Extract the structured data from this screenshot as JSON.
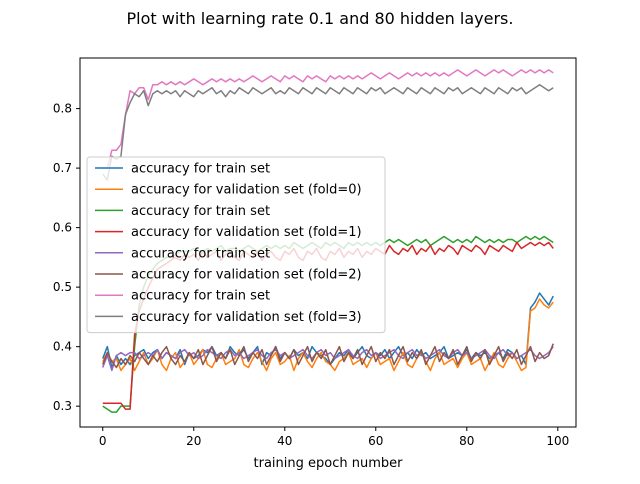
{
  "chart_data": {
    "type": "line",
    "title": "Plot with learning rate 0.1 and 80 hidden layers.",
    "xlabel": "training epoch number",
    "ylabel": "",
    "xlim": [
      -5,
      104
    ],
    "ylim": [
      0.265,
      0.885
    ],
    "xticks": [
      0,
      20,
      40,
      60,
      80,
      100
    ],
    "yticks": [
      0.3,
      0.4,
      0.5,
      0.6,
      0.7,
      0.8
    ],
    "xtick_labels": [
      "0",
      "20",
      "40",
      "60",
      "80",
      "100"
    ],
    "ytick_labels": [
      "0.3",
      "0.4",
      "0.5",
      "0.6",
      "0.7",
      "0.8"
    ],
    "grid": false,
    "legend_position": "center-left",
    "series": [
      {
        "name": "accuracy for train set",
        "color": "#1f77b4",
        "values": [
          0.38,
          0.4,
          0.365,
          0.385,
          0.37,
          0.38,
          0.37,
          0.385,
          0.39,
          0.395,
          0.38,
          0.39,
          0.395,
          0.38,
          0.39,
          0.385,
          0.38,
          0.395,
          0.37,
          0.39,
          0.38,
          0.385,
          0.395,
          0.39,
          0.4,
          0.385,
          0.39,
          0.38,
          0.4,
          0.39,
          0.385,
          0.395,
          0.38,
          0.39,
          0.4,
          0.37,
          0.39,
          0.385,
          0.4,
          0.38,
          0.39,
          0.38,
          0.395,
          0.385,
          0.39,
          0.38,
          0.4,
          0.39,
          0.385,
          0.38,
          0.37,
          0.38,
          0.39,
          0.385,
          0.395,
          0.38,
          0.39,
          0.4,
          0.385,
          0.38,
          0.39,
          0.385,
          0.395,
          0.38,
          0.39,
          0.4,
          0.385,
          0.39,
          0.38,
          0.395,
          0.385,
          0.39,
          0.38,
          0.385,
          0.39,
          0.4,
          0.38,
          0.385,
          0.39,
          0.385,
          0.395,
          0.38,
          0.39,
          0.385,
          0.39,
          0.38,
          0.385,
          0.39,
          0.38,
          0.395,
          0.39,
          0.38,
          0.385,
          0.37,
          0.465,
          0.475,
          0.49,
          0.48,
          0.47,
          0.485
        ]
      },
      {
        "name": "accuracy for validation set (fold=0)",
        "color": "#ff7f0e",
        "values": [
          0.375,
          0.39,
          0.375,
          0.38,
          0.36,
          0.37,
          0.38,
          0.36,
          0.375,
          0.39,
          0.37,
          0.38,
          0.395,
          0.37,
          0.36,
          0.38,
          0.39,
          0.365,
          0.375,
          0.39,
          0.37,
          0.38,
          0.395,
          0.37,
          0.365,
          0.38,
          0.39,
          0.37,
          0.375,
          0.38,
          0.395,
          0.37,
          0.365,
          0.38,
          0.39,
          0.375,
          0.36,
          0.38,
          0.39,
          0.37,
          0.375,
          0.385,
          0.36,
          0.38,
          0.39,
          0.375,
          0.365,
          0.38,
          0.39,
          0.375,
          0.37,
          0.36,
          0.375,
          0.38,
          0.39,
          0.37,
          0.375,
          0.38,
          0.365,
          0.38,
          0.39,
          0.37,
          0.375,
          0.38,
          0.36,
          0.375,
          0.39,
          0.37,
          0.365,
          0.38,
          0.39,
          0.375,
          0.36,
          0.38,
          0.39,
          0.37,
          0.375,
          0.38,
          0.365,
          0.38,
          0.39,
          0.37,
          0.375,
          0.38,
          0.36,
          0.375,
          0.39,
          0.37,
          0.365,
          0.38,
          0.39,
          0.375,
          0.36,
          0.365,
          0.46,
          0.465,
          0.48,
          0.47,
          0.465,
          0.475
        ]
      },
      {
        "name": "accuracy for train set",
        "color": "#2ca02c",
        "values": [
          0.3,
          0.295,
          0.29,
          0.29,
          0.3,
          0.3,
          0.3,
          0.4,
          0.47,
          0.5,
          0.52,
          0.53,
          0.54,
          0.545,
          0.55,
          0.55,
          0.555,
          0.56,
          0.56,
          0.56,
          0.565,
          0.56,
          0.56,
          0.565,
          0.56,
          0.565,
          0.57,
          0.56,
          0.565,
          0.565,
          0.56,
          0.565,
          0.57,
          0.565,
          0.56,
          0.565,
          0.57,
          0.565,
          0.57,
          0.565,
          0.57,
          0.565,
          0.575,
          0.57,
          0.565,
          0.57,
          0.575,
          0.57,
          0.565,
          0.575,
          0.57,
          0.575,
          0.57,
          0.565,
          0.575,
          0.57,
          0.575,
          0.57,
          0.575,
          0.57,
          0.575,
          0.57,
          0.575,
          0.58,
          0.575,
          0.58,
          0.575,
          0.57,
          0.575,
          0.58,
          0.575,
          0.58,
          0.57,
          0.575,
          0.58,
          0.585,
          0.58,
          0.575,
          0.58,
          0.575,
          0.58,
          0.575,
          0.585,
          0.58,
          0.575,
          0.58,
          0.575,
          0.58,
          0.575,
          0.58,
          0.58,
          0.575,
          0.58,
          0.585,
          0.58,
          0.585,
          0.58,
          0.585,
          0.58,
          0.575
        ]
      },
      {
        "name": "accuracy for validation set (fold=1)",
        "color": "#d62728",
        "values": [
          0.305,
          0.305,
          0.305,
          0.305,
          0.305,
          0.295,
          0.295,
          0.42,
          0.46,
          0.48,
          0.5,
          0.515,
          0.53,
          0.535,
          0.54,
          0.545,
          0.55,
          0.545,
          0.555,
          0.55,
          0.555,
          0.545,
          0.56,
          0.55,
          0.555,
          0.56,
          0.545,
          0.555,
          0.56,
          0.55,
          0.545,
          0.56,
          0.555,
          0.55,
          0.56,
          0.545,
          0.555,
          0.56,
          0.55,
          0.545,
          0.56,
          0.555,
          0.565,
          0.55,
          0.545,
          0.56,
          0.555,
          0.565,
          0.55,
          0.545,
          0.56,
          0.555,
          0.565,
          0.55,
          0.56,
          0.555,
          0.565,
          0.55,
          0.56,
          0.555,
          0.565,
          0.56,
          0.555,
          0.57,
          0.56,
          0.555,
          0.565,
          0.56,
          0.57,
          0.555,
          0.565,
          0.56,
          0.57,
          0.555,
          0.565,
          0.56,
          0.57,
          0.565,
          0.555,
          0.57,
          0.565,
          0.56,
          0.57,
          0.565,
          0.555,
          0.57,
          0.565,
          0.56,
          0.57,
          0.565,
          0.56,
          0.575,
          0.565,
          0.57,
          0.575,
          0.57,
          0.575,
          0.57,
          0.575,
          0.565
        ]
      },
      {
        "name": "accuracy for train set",
        "color": "#9467bd",
        "values": [
          0.365,
          0.385,
          0.36,
          0.385,
          0.39,
          0.385,
          0.39,
          0.39,
          0.38,
          0.385,
          0.39,
          0.385,
          0.395,
          0.38,
          0.39,
          0.385,
          0.38,
          0.39,
          0.395,
          0.385,
          0.39,
          0.38,
          0.385,
          0.395,
          0.39,
          0.385,
          0.38,
          0.39,
          0.395,
          0.385,
          0.39,
          0.38,
          0.385,
          0.39,
          0.395,
          0.385,
          0.38,
          0.39,
          0.395,
          0.385,
          0.39,
          0.38,
          0.385,
          0.39,
          0.395,
          0.385,
          0.38,
          0.39,
          0.395,
          0.385,
          0.39,
          0.38,
          0.385,
          0.39,
          0.395,
          0.385,
          0.38,
          0.39,
          0.395,
          0.385,
          0.39,
          0.38,
          0.385,
          0.39,
          0.395,
          0.385,
          0.38,
          0.39,
          0.395,
          0.385,
          0.39,
          0.38,
          0.385,
          0.39,
          0.395,
          0.385,
          0.38,
          0.39,
          0.395,
          0.385,
          0.39,
          0.38,
          0.385,
          0.39,
          0.395,
          0.385,
          0.38,
          0.39,
          0.395,
          0.385,
          0.39,
          0.38,
          0.385,
          0.39,
          0.395,
          0.385,
          0.38,
          0.385,
          0.39,
          0.4
        ]
      },
      {
        "name": "accuracy for validation set (fold=2)",
        "color": "#8c564b",
        "values": [
          0.37,
          0.39,
          0.375,
          0.365,
          0.38,
          0.37,
          0.385,
          0.375,
          0.39,
          0.38,
          0.37,
          0.385,
          0.375,
          0.39,
          0.4,
          0.38,
          0.37,
          0.385,
          0.375,
          0.39,
          0.38,
          0.395,
          0.37,
          0.385,
          0.4,
          0.375,
          0.39,
          0.38,
          0.395,
          0.37,
          0.385,
          0.4,
          0.375,
          0.39,
          0.38,
          0.395,
          0.37,
          0.385,
          0.4,
          0.375,
          0.39,
          0.38,
          0.395,
          0.37,
          0.385,
          0.4,
          0.375,
          0.39,
          0.38,
          0.395,
          0.37,
          0.385,
          0.4,
          0.375,
          0.39,
          0.38,
          0.395,
          0.37,
          0.385,
          0.4,
          0.375,
          0.39,
          0.38,
          0.395,
          0.37,
          0.385,
          0.4,
          0.375,
          0.39,
          0.38,
          0.395,
          0.37,
          0.385,
          0.4,
          0.375,
          0.39,
          0.38,
          0.395,
          0.37,
          0.385,
          0.4,
          0.375,
          0.39,
          0.38,
          0.395,
          0.37,
          0.385,
          0.4,
          0.375,
          0.39,
          0.38,
          0.395,
          0.37,
          0.385,
          0.4,
          0.375,
          0.39,
          0.38,
          0.385,
          0.405
        ]
      },
      {
        "name": "accuracy for train set",
        "color": "#e377c2",
        "values": [
          0.7,
          0.7,
          0.73,
          0.73,
          0.74,
          0.79,
          0.83,
          0.825,
          0.835,
          0.835,
          0.815,
          0.84,
          0.84,
          0.845,
          0.84,
          0.845,
          0.84,
          0.845,
          0.84,
          0.845,
          0.85,
          0.845,
          0.84,
          0.845,
          0.85,
          0.845,
          0.85,
          0.845,
          0.85,
          0.845,
          0.85,
          0.845,
          0.85,
          0.855,
          0.85,
          0.845,
          0.85,
          0.855,
          0.85,
          0.845,
          0.855,
          0.85,
          0.855,
          0.85,
          0.845,
          0.855,
          0.85,
          0.855,
          0.85,
          0.845,
          0.855,
          0.85,
          0.855,
          0.85,
          0.855,
          0.85,
          0.855,
          0.85,
          0.855,
          0.86,
          0.855,
          0.85,
          0.855,
          0.86,
          0.855,
          0.85,
          0.855,
          0.86,
          0.855,
          0.86,
          0.855,
          0.86,
          0.855,
          0.86,
          0.855,
          0.86,
          0.855,
          0.86,
          0.865,
          0.86,
          0.855,
          0.86,
          0.865,
          0.86,
          0.855,
          0.86,
          0.865,
          0.86,
          0.865,
          0.86,
          0.855,
          0.86,
          0.865,
          0.86,
          0.865,
          0.86,
          0.865,
          0.86,
          0.865,
          0.86
        ]
      },
      {
        "name": "accuracy for validation set (fold=3)",
        "color": "#7f7f7f",
        "values": [
          0.69,
          0.68,
          0.72,
          0.715,
          0.72,
          0.79,
          0.81,
          0.825,
          0.82,
          0.83,
          0.805,
          0.825,
          0.83,
          0.825,
          0.83,
          0.825,
          0.83,
          0.82,
          0.83,
          0.825,
          0.82,
          0.83,
          0.825,
          0.83,
          0.835,
          0.825,
          0.83,
          0.82,
          0.83,
          0.825,
          0.835,
          0.83,
          0.825,
          0.835,
          0.83,
          0.825,
          0.83,
          0.835,
          0.825,
          0.83,
          0.825,
          0.835,
          0.83,
          0.825,
          0.835,
          0.83,
          0.825,
          0.835,
          0.83,
          0.825,
          0.835,
          0.83,
          0.825,
          0.835,
          0.83,
          0.825,
          0.835,
          0.83,
          0.825,
          0.835,
          0.83,
          0.835,
          0.825,
          0.83,
          0.835,
          0.83,
          0.825,
          0.835,
          0.83,
          0.825,
          0.835,
          0.83,
          0.825,
          0.835,
          0.83,
          0.825,
          0.835,
          0.83,
          0.835,
          0.825,
          0.83,
          0.835,
          0.83,
          0.825,
          0.835,
          0.83,
          0.825,
          0.835,
          0.83,
          0.825,
          0.835,
          0.83,
          0.835,
          0.825,
          0.83,
          0.835,
          0.84,
          0.835,
          0.83,
          0.835
        ]
      }
    ]
  }
}
